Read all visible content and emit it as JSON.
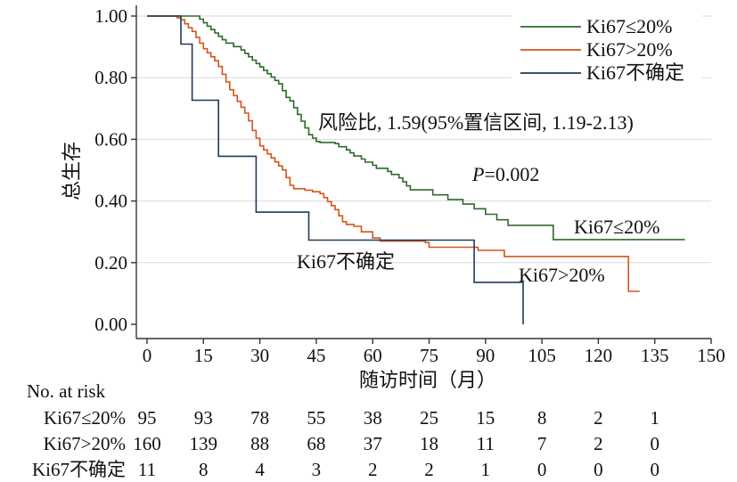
{
  "chart_data": {
    "type": "line",
    "subtype": "kaplan-meier",
    "xlabel": "随访时间（月）",
    "ylabel": "总生存",
    "xlim": [
      0,
      150
    ],
    "ylim": [
      0,
      1
    ],
    "xticks": [
      0,
      15,
      30,
      45,
      60,
      75,
      90,
      105,
      120,
      135,
      150
    ],
    "yticks": [
      "0.00",
      "0.20",
      "0.40",
      "0.60",
      "0.80",
      "1.00"
    ],
    "grid": "horizontal",
    "legend": {
      "placement": "top-right",
      "entries": [
        "Ki67≤20%",
        "Ki67>20%",
        "Ki67不确定"
      ]
    },
    "annotations": {
      "hazard_ratio": "风险比, 1.59(95%置信区间, 1.19-2.13)",
      "p_italic": "P",
      "p_value": "=0.002",
      "curve_label_low": "Ki67≤20%",
      "curve_label_high": "Ki67>20%",
      "curve_label_unknown": "Ki67不确定"
    },
    "series": [
      {
        "name": "Ki67≤20%",
        "color": "#2e6b2a",
        "points": [
          [
            0,
            1.0
          ],
          [
            14,
            0.99
          ],
          [
            15,
            0.978
          ],
          [
            16,
            0.967
          ],
          [
            17,
            0.956
          ],
          [
            18,
            0.945
          ],
          [
            19,
            0.934
          ],
          [
            20,
            0.923
          ],
          [
            21,
            0.912
          ],
          [
            23,
            0.901
          ],
          [
            25,
            0.89
          ],
          [
            26,
            0.879
          ],
          [
            27,
            0.868
          ],
          [
            28,
            0.857
          ],
          [
            29,
            0.846
          ],
          [
            30,
            0.835
          ],
          [
            31,
            0.824
          ],
          [
            32,
            0.813
          ],
          [
            33,
            0.802
          ],
          [
            34,
            0.791
          ],
          [
            35,
            0.78
          ],
          [
            36,
            0.758
          ],
          [
            37,
            0.736
          ],
          [
            38,
            0.725
          ],
          [
            39,
            0.703
          ],
          [
            40,
            0.681
          ],
          [
            41,
            0.659
          ],
          [
            42,
            0.637
          ],
          [
            43,
            0.615
          ],
          [
            44,
            0.604
          ],
          [
            45,
            0.593
          ],
          [
            46,
            0.59
          ],
          [
            50,
            0.586
          ],
          [
            51,
            0.576
          ],
          [
            53,
            0.566
          ],
          [
            54,
            0.556
          ],
          [
            55,
            0.546
          ],
          [
            57,
            0.536
          ],
          [
            58,
            0.526
          ],
          [
            60,
            0.516
          ],
          [
            61,
            0.506
          ],
          [
            64,
            0.496
          ],
          [
            65,
            0.486
          ],
          [
            67,
            0.475
          ],
          [
            68,
            0.462
          ],
          [
            69,
            0.449
          ],
          [
            70,
            0.436
          ],
          [
            76,
            0.42
          ],
          [
            80,
            0.405
          ],
          [
            84,
            0.39
          ],
          [
            87,
            0.375
          ],
          [
            90,
            0.357
          ],
          [
            93,
            0.339
          ],
          [
            96,
            0.321
          ],
          [
            108,
            0.275
          ],
          [
            143,
            0.275
          ]
        ]
      },
      {
        "name": "Ki67>20%",
        "color": "#d4561c",
        "points": [
          [
            0,
            1.0
          ],
          [
            8,
            0.994
          ],
          [
            9,
            0.988
          ],
          [
            10,
            0.975
          ],
          [
            11,
            0.962
          ],
          [
            12,
            0.95
          ],
          [
            13,
            0.931
          ],
          [
            14,
            0.912
          ],
          [
            15,
            0.894
          ],
          [
            16,
            0.881
          ],
          [
            17,
            0.868
          ],
          [
            18,
            0.855
          ],
          [
            19,
            0.836
          ],
          [
            20,
            0.811
          ],
          [
            21,
            0.786
          ],
          [
            22,
            0.761
          ],
          [
            23,
            0.742
          ],
          [
            24,
            0.723
          ],
          [
            25,
            0.704
          ],
          [
            26,
            0.685
          ],
          [
            27,
            0.66
          ],
          [
            28,
            0.629
          ],
          [
            29,
            0.604
          ],
          [
            30,
            0.579
          ],
          [
            31,
            0.566
          ],
          [
            32,
            0.553
          ],
          [
            33,
            0.54
          ],
          [
            34,
            0.527
          ],
          [
            35,
            0.514
          ],
          [
            36,
            0.501
          ],
          [
            37,
            0.476
          ],
          [
            38,
            0.451
          ],
          [
            39,
            0.44
          ],
          [
            42,
            0.435
          ],
          [
            44,
            0.43
          ],
          [
            46,
            0.424
          ],
          [
            47,
            0.411
          ],
          [
            48,
            0.398
          ],
          [
            49,
            0.385
          ],
          [
            50,
            0.372
          ],
          [
            51,
            0.352
          ],
          [
            52,
            0.333
          ],
          [
            53,
            0.324
          ],
          [
            55,
            0.318
          ],
          [
            57,
            0.3
          ],
          [
            60,
            0.28
          ],
          [
            62,
            0.27
          ],
          [
            74,
            0.265
          ],
          [
            75,
            0.25
          ],
          [
            88,
            0.24
          ],
          [
            95,
            0.22
          ],
          [
            128,
            0.107
          ],
          [
            131,
            0.107
          ]
        ]
      },
      {
        "name": "Ki67不确定",
        "color": "#1f3a5c",
        "points": [
          [
            0,
            1.0
          ],
          [
            9,
            0.909
          ],
          [
            12,
            0.818
          ],
          [
            12,
            0.727
          ],
          [
            19,
            0.636
          ],
          [
            19,
            0.545
          ],
          [
            29,
            0.364
          ],
          [
            43,
            0.273
          ],
          [
            87,
            0.136
          ],
          [
            100,
            0.136
          ],
          [
            100,
            0.0
          ]
        ]
      }
    ],
    "risk_table": {
      "title": "No. at risk",
      "times": [
        0,
        15,
        30,
        45,
        60,
        75,
        90,
        105,
        120,
        135
      ],
      "rows": [
        {
          "label": "Ki67≤20%",
          "values": [
            95,
            93,
            78,
            55,
            38,
            25,
            15,
            8,
            2,
            1
          ]
        },
        {
          "label": "Ki67>20%",
          "values": [
            160,
            139,
            88,
            68,
            37,
            18,
            11,
            7,
            2,
            0
          ]
        },
        {
          "label": "Ki67不确定",
          "values": [
            11,
            8,
            4,
            3,
            2,
            2,
            1,
            0,
            0,
            0
          ]
        }
      ]
    }
  }
}
